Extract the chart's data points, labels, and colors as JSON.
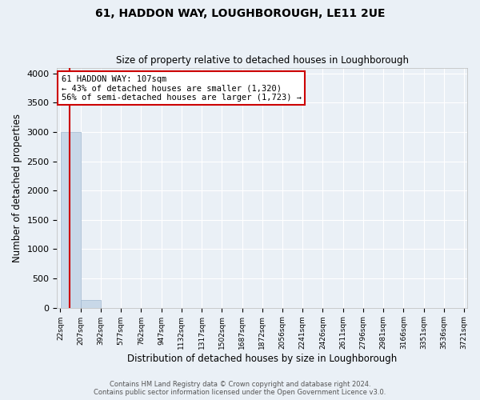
{
  "title": "61, HADDON WAY, LOUGHBOROUGH, LE11 2UE",
  "subtitle": "Size of property relative to detached houses in Loughborough",
  "xlabel": "Distribution of detached houses by size in Loughborough",
  "ylabel": "Number of detached properties",
  "bin_labels": [
    "22sqm",
    "207sqm",
    "392sqm",
    "577sqm",
    "762sqm",
    "947sqm",
    "1132sqm",
    "1317sqm",
    "1502sqm",
    "1687sqm",
    "1872sqm",
    "2056sqm",
    "2241sqm",
    "2426sqm",
    "2611sqm",
    "2796sqm",
    "2981sqm",
    "3166sqm",
    "3351sqm",
    "3536sqm",
    "3721sqm"
  ],
  "bar_values": [
    3000,
    130,
    0,
    0,
    0,
    0,
    0,
    0,
    0,
    0,
    0,
    0,
    0,
    0,
    0,
    0,
    0,
    0,
    0,
    0
  ],
  "bar_color": "#c8d8e8",
  "bar_edgecolor": "#a0b8d0",
  "vline_color": "#cc0000",
  "annotation_title": "61 HADDON WAY: 107sqm",
  "annotation_line1": "← 43% of detached houses are smaller (1,320)",
  "annotation_line2": "56% of semi-detached houses are larger (1,723) →",
  "annotation_box_facecolor": "#ffffff",
  "annotation_box_edgecolor": "#cc0000",
  "ylim": [
    0,
    4100
  ],
  "yticks": [
    0,
    500,
    1000,
    1500,
    2000,
    2500,
    3000,
    3500,
    4000
  ],
  "footer_line1": "Contains HM Land Registry data © Crown copyright and database right 2024.",
  "footer_line2": "Contains public sector information licensed under the Open Government Licence v3.0.",
  "bg_color": "#eaf0f6",
  "plot_bg_color": "#eaf0f6",
  "grid_color": "#ffffff",
  "property_sqm": 107,
  "bin_edges": [
    22,
    207,
    392,
    577,
    762,
    947,
    1132,
    1317,
    1502,
    1687,
    1872,
    2056,
    2241,
    2426,
    2611,
    2796,
    2981,
    3166,
    3351,
    3536,
    3721
  ]
}
